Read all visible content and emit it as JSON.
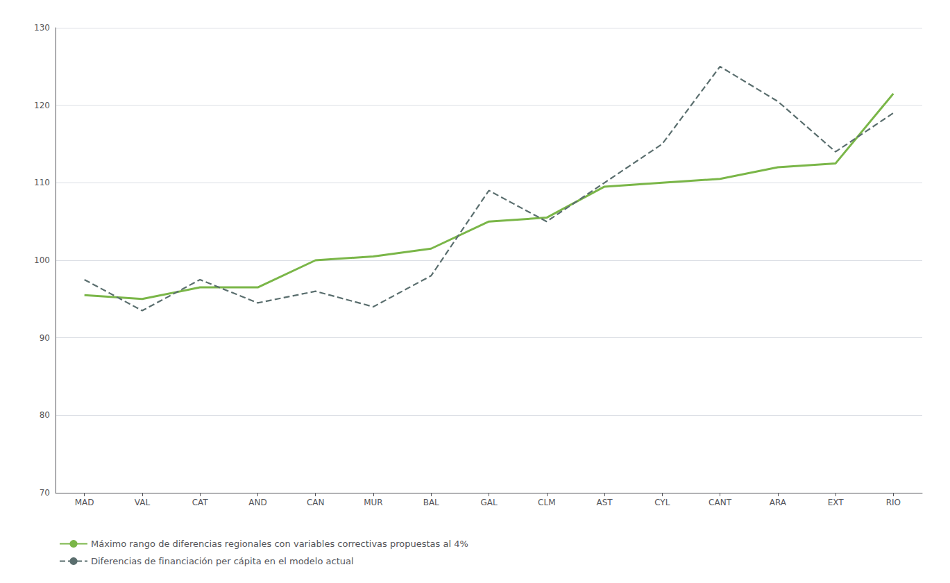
{
  "chart_data": {
    "type": "line",
    "categories": [
      "MAD",
      "VAL",
      "CAT",
      "AND",
      "CAN",
      "MUR",
      "BAL",
      "GAL",
      "CLM",
      "AST",
      "CYL",
      "CANT",
      "ARA",
      "EXT",
      "RIO"
    ],
    "series": [
      {
        "name": "Máximo rango de diferencias regionales con variables correctivas propuestas al 4%",
        "color": "#7ab648",
        "line_style": "solid",
        "values": [
          95.5,
          95.0,
          96.5,
          96.5,
          100.0,
          100.5,
          101.5,
          105.0,
          105.5,
          109.5,
          110.0,
          110.5,
          112.0,
          112.5,
          121.5
        ]
      },
      {
        "name": "Diferencias de financiación per cápita en el modelo actual",
        "color": "#5a6e6e",
        "line_style": "dashed",
        "values": [
          97.5,
          93.5,
          97.5,
          94.5,
          96.0,
          94.0,
          98.0,
          109.0,
          105.0,
          110.0,
          115.0,
          125.0,
          120.5,
          114.0,
          119.0
        ]
      }
    ],
    "ylim": [
      70,
      130
    ],
    "yticks": [
      70,
      80,
      90,
      100,
      110,
      120,
      130
    ],
    "grid": true,
    "legend": "lower left"
  }
}
